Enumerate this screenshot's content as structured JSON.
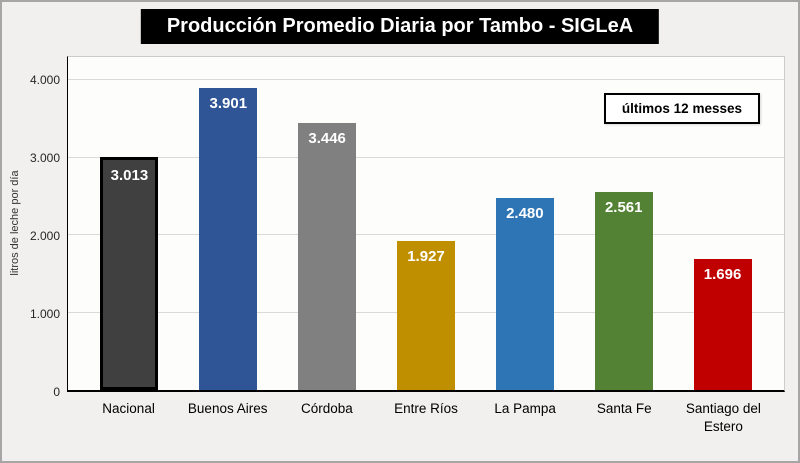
{
  "title": "Producción Promedio Diaria por Tambo - SIGLeA",
  "annotation_box": {
    "label": "últimos 12 messes"
  },
  "y_axis": {
    "title": "litros de leche por día"
  },
  "chart_data": {
    "type": "bar",
    "title": "Producción Promedio Diaria por Tambo - SIGLeA",
    "categories": [
      "Nacional",
      "Buenos Aires",
      "Córdoba",
      "Entre Ríos",
      "La Pampa",
      "Santa Fe",
      "Santiago del Estero"
    ],
    "values": [
      3013,
      3901,
      3446,
      1927,
      2480,
      2561,
      1696
    ],
    "value_labels": [
      "3.013",
      "3.901",
      "3.446",
      "1.927",
      "2.480",
      "2.561",
      "1.696"
    ],
    "bar_colors": [
      "#404040",
      "#2F5597",
      "#808080",
      "#BF8F00",
      "#2E75B6",
      "#548235",
      "#C00000"
    ],
    "bar_borders": [
      "#000000",
      null,
      null,
      null,
      null,
      null,
      null
    ],
    "xlabel": "",
    "ylabel": "litros de leche por día",
    "ylim": [
      0,
      4000
    ],
    "yticks": [
      0,
      1000,
      2000,
      3000,
      4000
    ],
    "ytick_labels": [
      "0",
      "1.000",
      "2.000",
      "3.000",
      "4.000"
    ],
    "grid": true,
    "legend_position": "none",
    "annotation": "últimos 12 messes"
  }
}
